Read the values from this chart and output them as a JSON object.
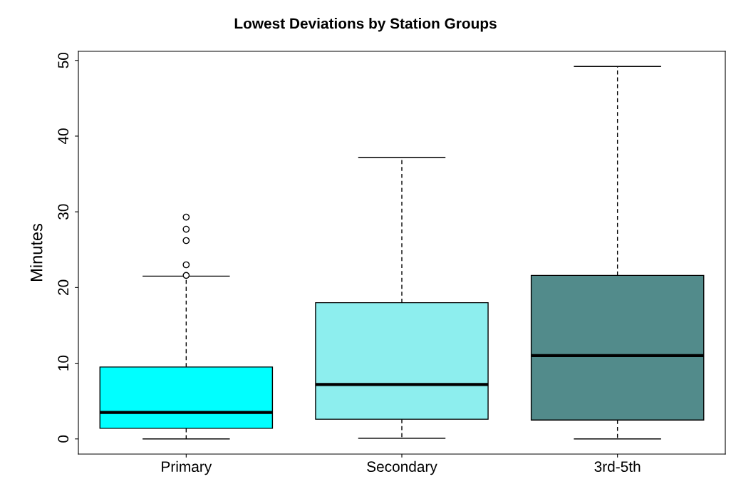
{
  "chart_data": {
    "type": "box",
    "title": "Lowest Deviations by Station Groups",
    "ylabel": "Minutes",
    "categories": [
      "Primary",
      "Secondary",
      "3rd-5th"
    ],
    "colors": [
      "#00ffff",
      "#8deeee",
      "#528b8b"
    ],
    "boxes": [
      {
        "low": 0,
        "q1": 1.4,
        "median": 3.5,
        "q3": 9.5,
        "high": 21.5,
        "outliers": [
          21.6,
          23.0,
          26.2,
          27.7,
          29.3
        ]
      },
      {
        "low": 0.1,
        "q1": 2.6,
        "median": 7.2,
        "q3": 18.0,
        "high": 37.2
      },
      {
        "low": 0,
        "q1": 2.5,
        "median": 11.0,
        "q3": 21.6,
        "high": 49.2
      }
    ],
    "ylim": [
      -2,
      51.2
    ],
    "yticks": [
      0,
      10,
      20,
      30,
      40,
      50
    ],
    "grid": false,
    "legend": false
  }
}
